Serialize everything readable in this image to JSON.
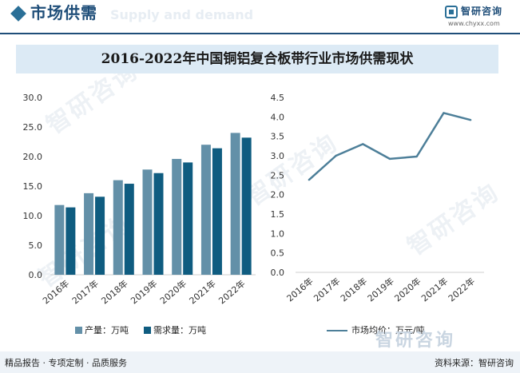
{
  "header": {
    "title": "市场供需",
    "ghost_text": "Supply and demand",
    "logo_name": "智研咨询",
    "logo_url": "www.chyxx.com"
  },
  "chart_title": "2016-2022年中国铜铝复合板带行业市场供需现状",
  "watermark": {
    "text": "智研咨询"
  },
  "chart_data": [
    {
      "type": "bar",
      "categories": [
        "2016年",
        "2017年",
        "2018年",
        "2019年",
        "2020年",
        "2021年",
        "2022年"
      ],
      "series": [
        {
          "name": "产量：万吨",
          "color": "#6390a8",
          "values": [
            11.8,
            13.8,
            16.0,
            17.8,
            19.6,
            22.0,
            24.0
          ]
        },
        {
          "name": "需求量：万吨",
          "color": "#0f5c80",
          "values": [
            11.4,
            13.2,
            15.4,
            17.2,
            19.0,
            21.4,
            23.2
          ]
        }
      ],
      "ylim": [
        0,
        30
      ],
      "yticks": [
        "0.0",
        "5.0",
        "10.0",
        "15.0",
        "20.0",
        "25.0",
        "30.0"
      ],
      "grid": false,
      "legend": "bottom"
    },
    {
      "type": "line",
      "categories": [
        "2016年",
        "2017年",
        "2018年",
        "2019年",
        "2020年",
        "2021年",
        "2022年"
      ],
      "series": [
        {
          "name": "市场均价：万元/吨",
          "color": "#4d7f99",
          "values": [
            2.38,
            3.0,
            3.3,
            2.92,
            2.98,
            4.1,
            3.92
          ]
        }
      ],
      "ylim": [
        0,
        4.5
      ],
      "yticks": [
        "0.0",
        "0.5",
        "1.0",
        "1.5",
        "2.0",
        "2.5",
        "3.0",
        "3.5",
        "4.0",
        "4.5"
      ],
      "grid": false,
      "legend": "bottom"
    }
  ],
  "footer": {
    "left": "精品报告 · 专项定制 · 品质服务",
    "right": "资料来源：智研咨询",
    "watermark": "智研咨询"
  }
}
